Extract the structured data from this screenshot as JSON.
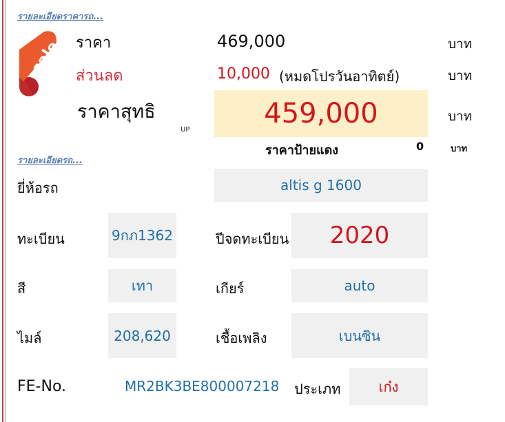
{
  "links": {
    "price_details": "รายละเอียดราคารถ...",
    "car_details": "รายละเอียดรถ..."
  },
  "sale_badge": {
    "icon": "sale-ribbon-icon",
    "text": "sale",
    "color": "#e8542a"
  },
  "price": {
    "price_label": "ราคา",
    "price_value": "469,000",
    "discount_label": "ส่วนลด",
    "discount_value": "10,000",
    "discount_note": "(หมดโปรวันอาทิตย์)",
    "net_label": "ราคาสุทธิ",
    "net_value": "459,000",
    "up_label": "UP",
    "red_plate_label": "ราคาป้ายแดง",
    "red_plate_value": "0",
    "currency": "บาท"
  },
  "car": {
    "brand_label": "ยี่ห้อรถ",
    "brand_value": "altis g 1600",
    "plate_label": "ทะเบียน",
    "plate_value": "9กภ1362",
    "reg_year_label": "ปีจดทะเบียน",
    "reg_year_value": "2020",
    "color_label": "สี",
    "color_value": "เทา",
    "gear_label": "เกียร์",
    "gear_value": "auto",
    "mileage_label": "ไมล์",
    "mileage_value": "208,620",
    "fuel_label": "เชื้อเพลิง",
    "fuel_value": "เบนซิน",
    "fe_label": "FE-No.",
    "fe_value": "MR2BK3BE800007218",
    "type_label": "ประเภท",
    "type_value": "เก๋ง"
  },
  "colors": {
    "accent_red": "#d4161c",
    "value_blue": "#1f6fa8",
    "highlight": "#fdf0c8",
    "cell_bg": "#f0f0f0"
  }
}
